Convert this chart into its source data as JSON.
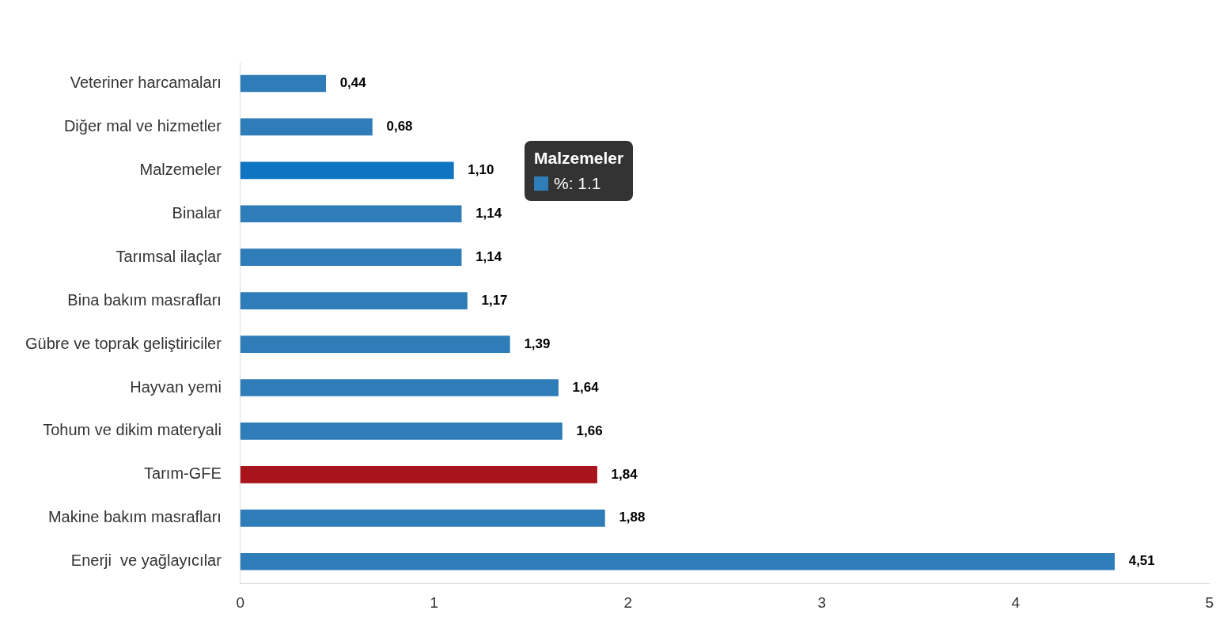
{
  "chart_data": {
    "type": "bar",
    "orientation": "horizontal",
    "categories": [
      "Veteriner harcamaları",
      "Diğer mal ve hizmetler",
      "Malzemeler",
      "Binalar",
      "Tarımsal ilaçlar",
      "Bina bakım masrafları",
      "Gübre ve toprak geliştiriciler",
      "Hayvan yemi",
      "Tohum ve dikim materyali",
      "Tarım-GFE",
      "Makine bakım masrafları",
      "Enerji  ve yağlayıcılar"
    ],
    "values": [
      0.44,
      0.68,
      1.1,
      1.14,
      1.14,
      1.17,
      1.39,
      1.64,
      1.66,
      1.84,
      1.88,
      4.51
    ],
    "colors": [
      "#2e7cb8",
      "#2e7cb8",
      "#0f74c2",
      "#2e7cb8",
      "#2e7cb8",
      "#2e7cb8",
      "#2e7cb8",
      "#2e7cb8",
      "#2e7cb8",
      "#a8141b",
      "#2e7cb8",
      "#2e7cb8"
    ],
    "value_labels": [
      "0,44",
      "0,68",
      "1,10",
      "1,14",
      "1,14",
      "1,17",
      "1,39",
      "1,64",
      "1,66",
      "1,84",
      "1,88",
      "4,51"
    ],
    "xlim": [
      0,
      5
    ],
    "xticks": [
      0,
      1,
      2,
      3,
      4,
      5
    ],
    "grid": false,
    "legend": false,
    "annotations": [
      "Malzemeler",
      "%: 1.1"
    ]
  }
}
